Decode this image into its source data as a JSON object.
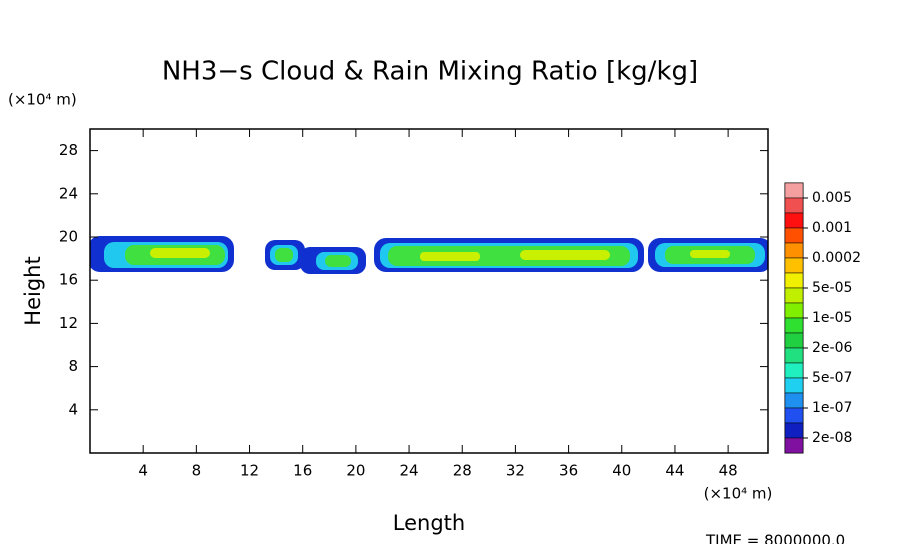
{
  "chart_data": {
    "type": "contour",
    "title": "NH3−s Cloud & Rain Mixing Ratio [kg/kg]",
    "x_label": "Length",
    "y_label": "Height",
    "x_unit": "(×10⁴ m)",
    "y_unit": "(×10⁴ m)",
    "xlim": [
      0,
      51
    ],
    "ylim": [
      0,
      30
    ],
    "xticks": [
      4,
      8,
      12,
      16,
      20,
      24,
      28,
      32,
      36,
      40,
      44,
      48
    ],
    "yticks": [
      4,
      8,
      12,
      16,
      20,
      24,
      28
    ],
    "colorbar": {
      "colors": [
        "#f4a0a0",
        "#f05050",
        "#ff1010",
        "#ff5000",
        "#ff9000",
        "#ffc000",
        "#f0f000",
        "#c0f000",
        "#80f000",
        "#30e030",
        "#20d040",
        "#20e080",
        "#20f0c0",
        "#20d0f0",
        "#2090f0",
        "#2050f0",
        "#1020c0",
        "#8010a0"
      ],
      "labels": [
        0.005,
        0.001,
        0.0002,
        {
          "value": 5e-05,
          "label": "5e-05"
        },
        {
          "value": 1e-05,
          "label": "1e-05"
        },
        {
          "value": 2e-06,
          "label": "2e-06"
        },
        {
          "value": 5e-07,
          "label": "5e-07"
        },
        {
          "value": 1e-07,
          "label": "1e-07"
        },
        {
          "value": 2e-08,
          "label": "2e-08"
        }
      ]
    },
    "annotation": "TIME = 8000000.0"
  }
}
